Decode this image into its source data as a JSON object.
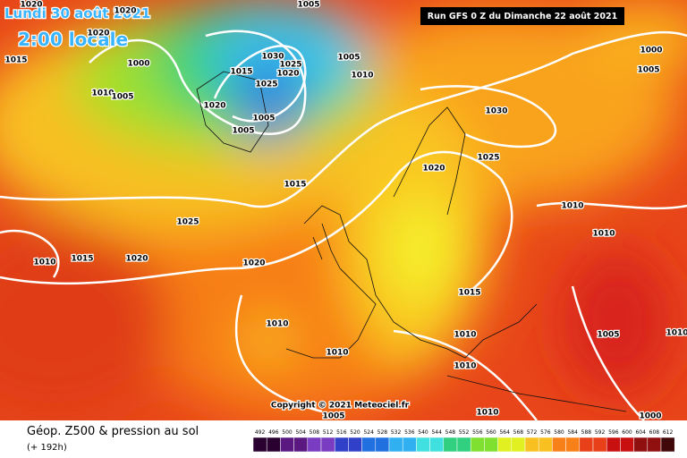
{
  "header": {
    "date": "Lundi 30 août 2021",
    "time": "2:00 locale",
    "run": "Run GFS 0 Z du Dimanche 22 août 2021"
  },
  "copyright": "Copyright © 2021 Meteociel.fr",
  "footer": {
    "title": "Géop. Z500 & pression au sol",
    "lead": "(+ 192h)"
  },
  "scale": {
    "labels": [
      492,
      496,
      500,
      504,
      508,
      512,
      516,
      520,
      524,
      528,
      532,
      536,
      540,
      544,
      548,
      552,
      556,
      560,
      564,
      568,
      572,
      576,
      580,
      584,
      588,
      592,
      596,
      600,
      604,
      608,
      612
    ]
  },
  "isobars": {
    "labels": [
      1020,
      1020,
      1005,
      1015,
      1000,
      1010,
      1005,
      1020,
      1030,
      1025,
      1020,
      1015,
      1025,
      1020,
      1005,
      1005,
      1005,
      1010,
      1030,
      1020,
      1025,
      1015,
      1025,
      1010,
      1015,
      1020,
      1020,
      1010,
      1010,
      1015,
      1010,
      1010,
      1010,
      1010,
      1005,
      1010,
      1000,
      1005,
      1005,
      1010,
      1000
    ]
  }
}
